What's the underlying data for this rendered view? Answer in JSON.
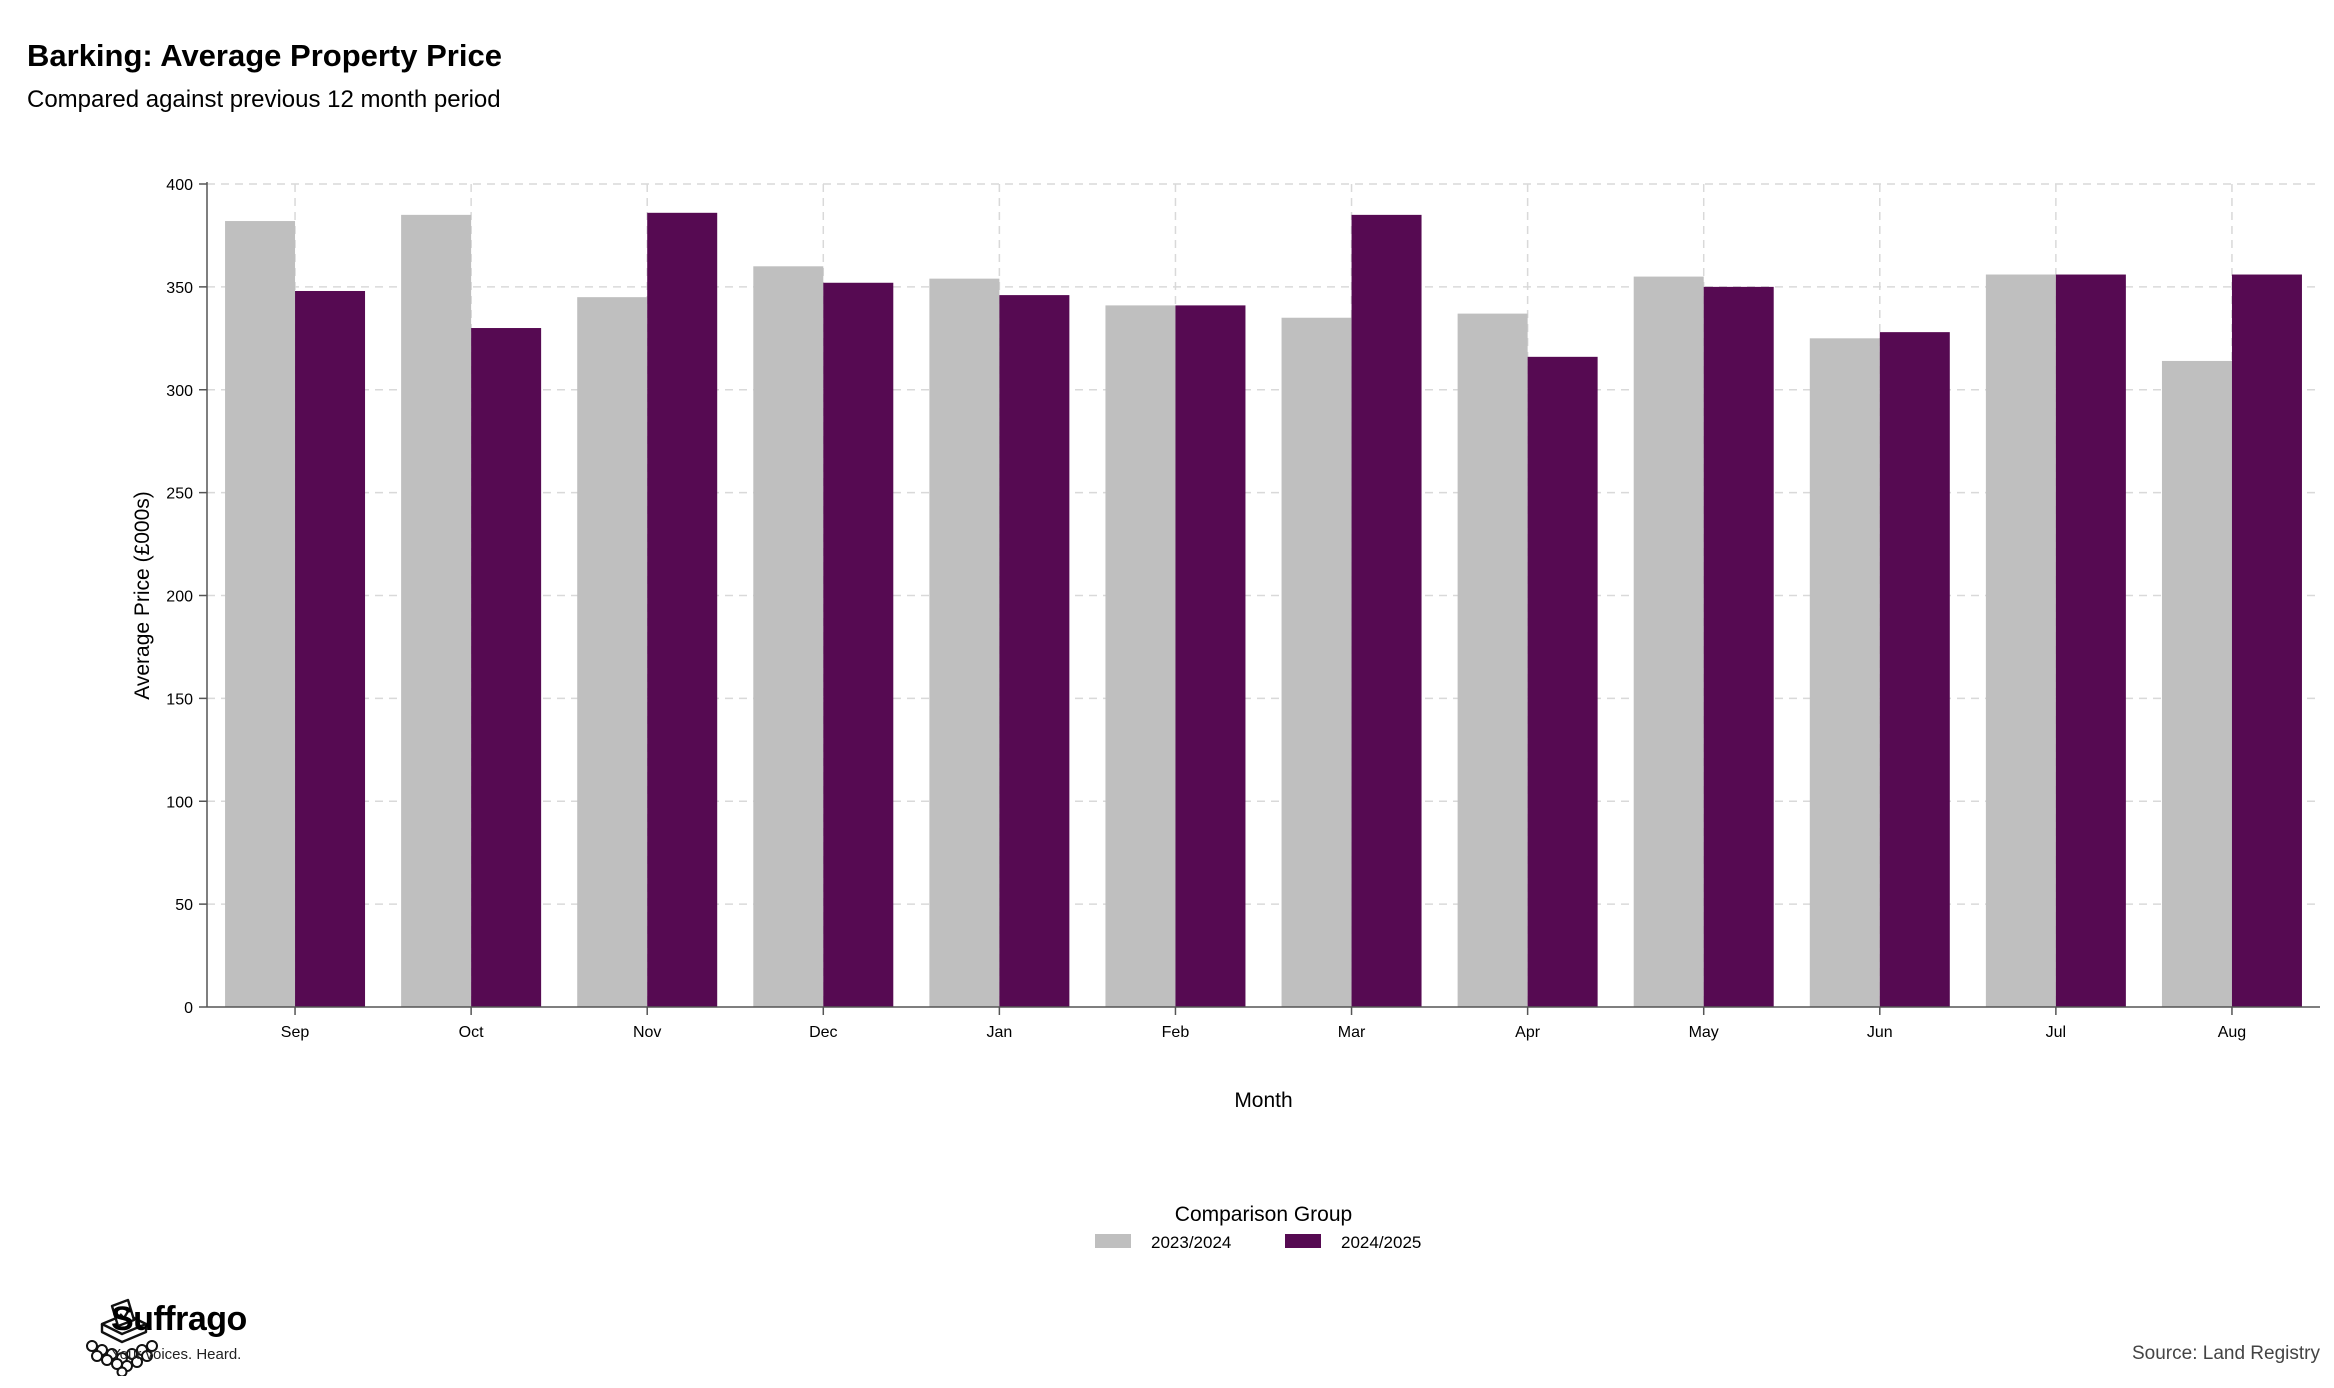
{
  "header": {
    "title": "Barking: Average Property Price",
    "subtitle": "Compared against previous 12 month period"
  },
  "chart_data": {
    "type": "bar",
    "categories": [
      "Sep",
      "Oct",
      "Nov",
      "Dec",
      "Jan",
      "Feb",
      "Mar",
      "Apr",
      "May",
      "Jun",
      "Jul",
      "Aug"
    ],
    "series": [
      {
        "name": "2023/2024",
        "color": "#bfbfbf",
        "values": [
          382,
          385,
          345,
          360,
          354,
          341,
          335,
          337,
          355,
          325,
          356,
          314
        ]
      },
      {
        "name": "2024/2025",
        "color": "#560a52",
        "values": [
          348,
          330,
          386,
          352,
          346,
          341,
          385,
          316,
          350,
          328,
          356,
          356
        ]
      }
    ],
    "title": "Barking: Average Property Price",
    "subtitle": "Compared against previous 12 month period",
    "xlabel": "Month",
    "ylabel": "Average Price (£000s)",
    "ylim": [
      0,
      400
    ],
    "yticks": [
      0,
      50,
      100,
      150,
      200,
      250,
      300,
      350,
      400
    ],
    "grid": true,
    "legend_title": "Comparison Group",
    "legend_placement": "bottom"
  },
  "footer": {
    "brand": "Suffrago",
    "tagline": "Your voices. Heard.",
    "logo_icon": "ballot-box-icon",
    "source": "Source: Land Registry"
  }
}
